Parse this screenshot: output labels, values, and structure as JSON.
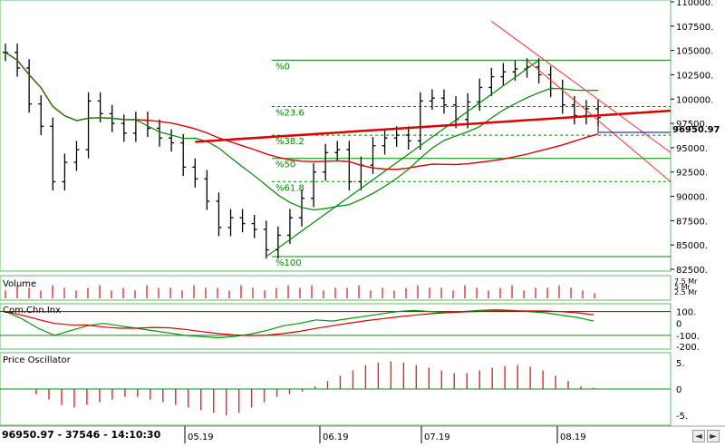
{
  "status": {
    "price": "96950.97",
    "volume": "37546",
    "time": "14:10:30"
  },
  "controls": {
    "left": "◄",
    "right": "►"
  },
  "price_panel": {
    "current_label": "96950.97",
    "axis": [
      "110000.",
      "107500.",
      "105000.",
      "102500.",
      "100000.",
      "97500.",
      "95000.",
      "92500.",
      "90000.",
      "87500.",
      "85000.",
      "82500."
    ],
    "fib_labels": [
      "%0",
      "%23.6",
      "%38.2",
      "%50",
      "%61.8",
      "%100"
    ]
  },
  "volume_panel": {
    "title": "Volume",
    "axis": [
      "7.5 Mr",
      "5 Mr",
      "2.5 Mr"
    ]
  },
  "cci_panel": {
    "title": "Com.Chn.Inx",
    "axis": [
      "100.",
      "0",
      "-100.",
      "-200."
    ]
  },
  "osc_panel": {
    "title": "Price Oscillator",
    "axis": [
      "5.",
      "0",
      "-5."
    ]
  },
  "x_axis": [
    "05.19",
    "06.19",
    "07.19",
    "08.19"
  ],
  "colors": {
    "bull": "#000000",
    "ma_red": "#dd0000",
    "ma_green": "#008800",
    "fib": "#008800",
    "channel": "#ee3333",
    "vol": "#dd2222",
    "osc": "#ee2222",
    "frame": "#66bb66",
    "cci_green": "#009900"
  },
  "chart_data": {
    "type": "bar",
    "price_range": [
      82500,
      110000
    ],
    "fibonacci": {
      "high": 104000,
      "low": 83800,
      "levels": [
        0,
        23.6,
        38.2,
        50,
        61.8,
        100
      ]
    },
    "last_price": 96950.97,
    "ohlc_close": [
      104800,
      103200,
      99500,
      97200,
      91500,
      93500,
      94800,
      99800,
      98500,
      97500,
      96500,
      97800,
      97000,
      96000,
      95500,
      93000,
      91800,
      89500,
      86800,
      87800,
      87200,
      86600,
      84500,
      86000,
      87800,
      89800,
      92500,
      94500,
      94800,
      91500,
      93200,
      95200,
      96000,
      96300,
      95700,
      99800,
      100100,
      99400,
      97900,
      99700,
      101200,
      102300,
      102800,
      103100,
      103300,
      102500,
      101100,
      99400,
      98300,
      99000,
      98100
    ],
    "volume": [
      3,
      5,
      4,
      3,
      5,
      4,
      3,
      4,
      5,
      3,
      4,
      3,
      5,
      4,
      4,
      3,
      5,
      4,
      4,
      3,
      5,
      4,
      3,
      4,
      5,
      4,
      5,
      3,
      4,
      4,
      5,
      3,
      4,
      3,
      4,
      5,
      4,
      4,
      3,
      5,
      4,
      3,
      4,
      5,
      3,
      4,
      4,
      5,
      4,
      3,
      2
    ],
    "cci": [
      100,
      40,
      -40,
      -100,
      -60,
      -20,
      0,
      -20,
      -40,
      -60,
      -80,
      -100,
      -110,
      -120,
      -110,
      -90,
      -60,
      -20,
      0,
      30,
      20,
      40,
      60,
      80,
      100,
      110,
      100,
      90,
      100,
      110,
      115,
      110,
      100,
      90,
      70,
      50,
      20
    ],
    "price_oscillator": [
      -1,
      -2,
      -3,
      -3.5,
      -3,
      -2.5,
      -2,
      -1.5,
      -1.5,
      -2,
      -2.5,
      -3,
      -3.5,
      -4,
      -4.5,
      -5,
      -4.5,
      -3.5,
      -2.5,
      -1.5,
      -1,
      -0.5,
      0.5,
      1.5,
      2.5,
      3.5,
      4.5,
      5,
      5.2,
      5,
      4.5,
      4,
      3.5,
      3,
      3,
      3.5,
      4,
      4.3,
      4.5,
      4.2,
      3.5,
      2.5,
      1.5,
      0.5,
      0.2
    ]
  }
}
